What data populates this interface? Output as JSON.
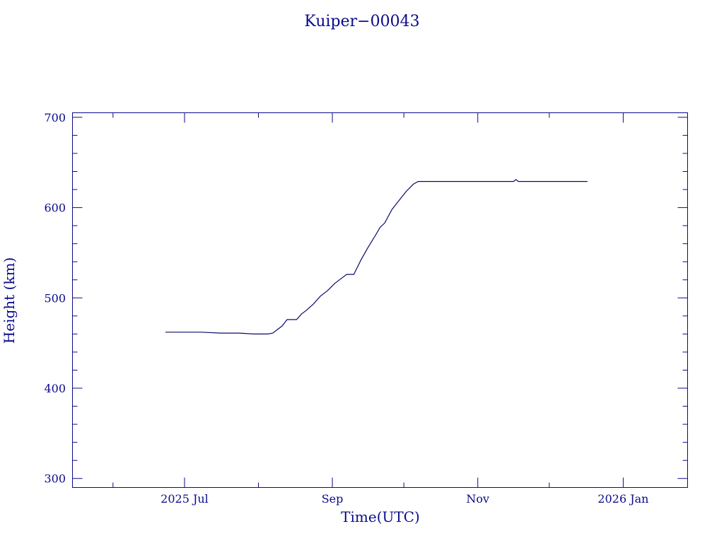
{
  "chart_data": {
    "type": "line",
    "title": "Kuiper−00043",
    "xlabel": "Time(UTC)",
    "ylabel": "Height (km)",
    "colors": {
      "axis": "#0a0a8c",
      "line": "#0a0a6e",
      "background": "#ffffff"
    },
    "grid": false,
    "legend": "none",
    "xlim": [
      "2025-05-15",
      "2026-01-28"
    ],
    "ylim": [
      290,
      705
    ],
    "x_ticks": [
      {
        "date": "2025-07-01",
        "label": "2025 Jul"
      },
      {
        "date": "2025-09-01",
        "label": "Sep"
      },
      {
        "date": "2025-11-01",
        "label": "Nov"
      },
      {
        "date": "2026-01-01",
        "label": "2026 Jan"
      }
    ],
    "x_minor_ticks": [
      "2025-06-01",
      "2025-08-01",
      "2025-10-01",
      "2025-12-01"
    ],
    "y_ticks": [
      300,
      400,
      500,
      600,
      700
    ],
    "y_minor_step": 20,
    "series": [
      {
        "points": [
          [
            "2025-06-23",
            462
          ],
          [
            "2025-06-30",
            462
          ],
          [
            "2025-07-08",
            462
          ],
          [
            "2025-07-16",
            461
          ],
          [
            "2025-07-24",
            461
          ],
          [
            "2025-07-30",
            460
          ],
          [
            "2025-08-05",
            460
          ],
          [
            "2025-08-07",
            461
          ],
          [
            "2025-08-11",
            469
          ],
          [
            "2025-08-13",
            476
          ],
          [
            "2025-08-17",
            476
          ],
          [
            "2025-08-19",
            482
          ],
          [
            "2025-08-21",
            486
          ],
          [
            "2025-08-24",
            493
          ],
          [
            "2025-08-27",
            502
          ],
          [
            "2025-08-30",
            508
          ],
          [
            "2025-09-02",
            516
          ],
          [
            "2025-09-05",
            522
          ],
          [
            "2025-09-07",
            526
          ],
          [
            "2025-09-10",
            526
          ],
          [
            "2025-09-13",
            542
          ],
          [
            "2025-09-16",
            556
          ],
          [
            "2025-09-19",
            569
          ],
          [
            "2025-09-21",
            578
          ],
          [
            "2025-09-23",
            583
          ],
          [
            "2025-09-26",
            598
          ],
          [
            "2025-09-29",
            608
          ],
          [
            "2025-10-02",
            618
          ],
          [
            "2025-10-05",
            626
          ],
          [
            "2025-10-07",
            629
          ],
          [
            "2025-10-15",
            629
          ],
          [
            "2025-10-25",
            629
          ],
          [
            "2025-11-05",
            629
          ],
          [
            "2025-11-12",
            629
          ],
          [
            "2025-11-16",
            629
          ],
          [
            "2025-11-17",
            631
          ],
          [
            "2025-11-18",
            629
          ],
          [
            "2025-11-28",
            629
          ],
          [
            "2025-12-08",
            629
          ],
          [
            "2025-12-17",
            629
          ]
        ]
      }
    ]
  }
}
